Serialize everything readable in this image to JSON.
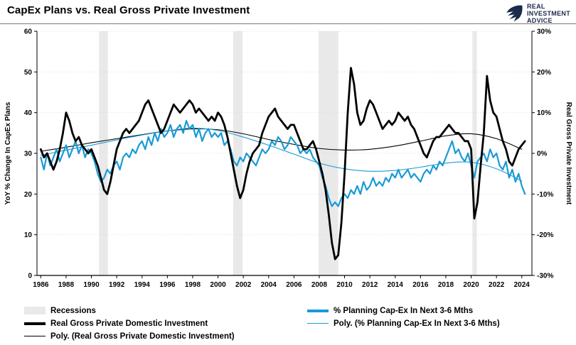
{
  "header": {
    "title": "CapEx Plans vs. Real Gross Private Investment"
  },
  "logo": {
    "line1": "REAL",
    "line2": "INVESTMENT",
    "line3": "ADVICE"
  },
  "colors": {
    "blue": "#1a9ad6",
    "black": "#000000",
    "recession": "#e9e9e9",
    "grid": "#d9d9d9",
    "logo_navy": "#1c2b4a"
  },
  "chart_data": {
    "type": "line",
    "title": "CapEx Plans vs. Real Gross Private Investment",
    "grid": "horizontal",
    "legend_position": "bottom",
    "x_axis": {
      "range": [
        1985.7,
        2024.8
      ],
      "ticks": [
        1986,
        1988,
        1990,
        1992,
        1994,
        1996,
        1998,
        2000,
        2002,
        2004,
        2006,
        2008,
        2010,
        2012,
        2014,
        2016,
        2018,
        2020,
        2022,
        2024
      ]
    },
    "y_left": {
      "label": "YoY % Change In CapEx Plans",
      "range": [
        0,
        60
      ],
      "ticks": [
        0,
        10,
        20,
        30,
        40,
        50,
        60
      ]
    },
    "y_right": {
      "label": "Real Gross Private Investment",
      "range": [
        -30,
        30
      ],
      "ticks": [
        30,
        20,
        10,
        0,
        -10,
        -20,
        -30
      ],
      "tick_suffix": "%"
    },
    "recessions": [
      [
        1990.6,
        1991.3
      ],
      [
        2001.2,
        2001.95
      ],
      [
        2007.95,
        2009.5
      ],
      [
        2020.1,
        2020.45
      ]
    ],
    "series": [
      {
        "name": "Poly. (Real Gross Private Domestic Investment)",
        "axis": "right",
        "color": "black",
        "width": 1.1,
        "smooth": true,
        "x_start": 1986,
        "x_step": 2,
        "values": [
          0.5,
          1.5,
          2.6,
          3.6,
          4.6,
          5.5,
          6.0,
          5.8,
          4.8,
          3.4,
          2.2,
          1.2,
          0.8,
          1.0,
          1.8,
          3.0,
          4.3,
          4.8,
          3.6,
          1.0
        ]
      },
      {
        "name": "Poly. (% Planning Cap-Ex In Next 3-6 Mths)",
        "axis": "left",
        "color": "blue",
        "width": 1.1,
        "smooth": true,
        "x_start": 1986,
        "x_step": 2,
        "values": [
          29.5,
          30.8,
          32.0,
          33.3,
          34.5,
          35.5,
          36.2,
          35.6,
          34.0,
          32.0,
          29.8,
          27.6,
          26.2,
          25.6,
          25.8,
          26.6,
          27.6,
          27.8,
          26.2,
          23.2
        ]
      },
      {
        "name": "% Planning Cap-Ex In Next 3-6 Mths",
        "axis": "left",
        "color": "blue",
        "width": 2.2,
        "x_start": 1986,
        "x_step": 0.25,
        "values": [
          29,
          26,
          30,
          27,
          29,
          31,
          28,
          30,
          32,
          29,
          31,
          33,
          30,
          32,
          29,
          31,
          30,
          28,
          25,
          23,
          24,
          26,
          25,
          27,
          28,
          26,
          29,
          30,
          29,
          31,
          30,
          32,
          33,
          31,
          34,
          32,
          35,
          33,
          36,
          34,
          35,
          37,
          34,
          36,
          37,
          35,
          38,
          36,
          37,
          34,
          36,
          33,
          35,
          36,
          34,
          35,
          34,
          35,
          32,
          33,
          31,
          28,
          27,
          29,
          28,
          30,
          29,
          28,
          27,
          29,
          31,
          30,
          31,
          33,
          32,
          34,
          33,
          31,
          32,
          34,
          33,
          32,
          30,
          31,
          30,
          31,
          29,
          28,
          27,
          24,
          22,
          19,
          17,
          18,
          17,
          19,
          20,
          19,
          21,
          20,
          22,
          20,
          23,
          21,
          22,
          24,
          22,
          23,
          22,
          24,
          23,
          25,
          24,
          26,
          24,
          25,
          26,
          24,
          25,
          24,
          23,
          25,
          26,
          25,
          27,
          26,
          28,
          27,
          29,
          31,
          33,
          30,
          31,
          29,
          28,
          30,
          27,
          24,
          28,
          29,
          30,
          28,
          31,
          29,
          30,
          27,
          26,
          28,
          24,
          26,
          23,
          25,
          22,
          20
        ]
      },
      {
        "name": "Real Gross Private Domestic Investment",
        "axis": "right",
        "color": "black",
        "width": 2.8,
        "x_start": 1986,
        "x_step": 0.25,
        "values": [
          1,
          -1,
          0,
          -2,
          -4,
          -2,
          1,
          5,
          10,
          8,
          5,
          3,
          4,
          2,
          1,
          0,
          1,
          -1,
          -3,
          -6,
          -9,
          -10,
          -7,
          -3,
          1,
          3,
          5,
          6,
          5,
          6,
          7,
          8,
          10,
          12,
          13,
          11,
          9,
          7,
          5,
          6,
          8,
          10,
          12,
          11,
          10,
          11,
          12,
          13,
          12,
          10,
          11,
          10,
          9,
          8,
          9,
          8,
          10,
          9,
          7,
          4,
          0,
          -4,
          -8,
          -11,
          -9,
          -5,
          -2,
          0,
          1,
          2,
          5,
          7,
          9,
          10,
          11,
          9,
          8,
          7,
          6,
          7,
          7,
          5,
          3,
          1,
          1,
          2,
          3,
          1,
          -2,
          -5,
          -9,
          -15,
          -22,
          -26,
          -25,
          -17,
          -5,
          10,
          21,
          17,
          10,
          7,
          8,
          11,
          13,
          12,
          10,
          8,
          6,
          7,
          8,
          7,
          8,
          10,
          9,
          8,
          9,
          7,
          6,
          4,
          2,
          0,
          -1,
          1,
          3,
          4,
          4,
          5,
          6,
          7,
          6,
          5,
          5,
          4,
          3,
          3,
          1,
          -16,
          -12,
          -3,
          5,
          19,
          13,
          10,
          9,
          6,
          3,
          1,
          -2,
          -3,
          -1,
          1,
          2,
          3
        ]
      }
    ]
  },
  "legend": {
    "col1": [
      {
        "label": "Recessions"
      },
      {
        "label": "Real Gross Private Domestic Investment"
      },
      {
        "label": "Poly. (Real Gross Private Domestic Investment)"
      }
    ],
    "col2": [
      {
        "label": "% Planning Cap-Ex In Next 3-6 Mths"
      },
      {
        "label": "Poly. (% Planning Cap-Ex In Next 3-6 Mths)"
      }
    ]
  }
}
